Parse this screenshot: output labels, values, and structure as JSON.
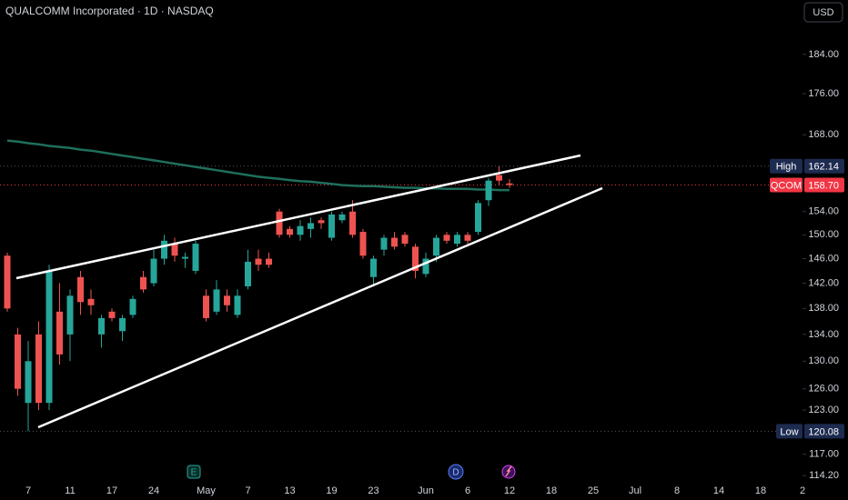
{
  "chart_data": {
    "type": "candlestick",
    "title": "QUALCOMM Incorporated · 1D · NASDAQ",
    "currency": "USD",
    "log_scale": true,
    "up_color": "#26a69a",
    "down_color": "#ef5350",
    "ma_color": "#1e6f5c",
    "ylim": [
      113.4,
      195.7
    ],
    "yticks": [
      {
        "value": 184,
        "label": "184.00"
      },
      {
        "value": 176,
        "label": "176.00"
      },
      {
        "value": 168,
        "label": "168.00"
      },
      {
        "value": 154,
        "label": "154.00"
      },
      {
        "value": 150,
        "label": "150.00"
      },
      {
        "value": 146,
        "label": "146.00"
      },
      {
        "value": 142,
        "label": "142.00"
      },
      {
        "value": 138,
        "label": "138.00"
      },
      {
        "value": 134,
        "label": "134.00"
      },
      {
        "value": 130,
        "label": "130.00"
      },
      {
        "value": 126,
        "label": "126.00"
      },
      {
        "value": 123,
        "label": "123.00"
      },
      {
        "value": 117,
        "label": "117.00"
      },
      {
        "value": 114.2,
        "label": "114.20"
      }
    ],
    "categories": [
      null,
      null,
      "7",
      null,
      null,
      null,
      "11",
      null,
      null,
      null,
      "17",
      null,
      null,
      null,
      "24",
      null,
      null,
      null,
      null,
      "May",
      null,
      null,
      null,
      "7",
      null,
      null,
      null,
      "13",
      null,
      null,
      null,
      "19",
      null,
      null,
      null,
      "23",
      null,
      null,
      null,
      null,
      "Jun",
      null,
      null,
      null,
      "6",
      null,
      null,
      null,
      "12",
      null,
      null,
      null,
      "18",
      null,
      null,
      null,
      "25",
      null,
      null,
      null,
      "Jul",
      null,
      null,
      null,
      "8",
      null,
      null,
      null,
      "14",
      null,
      null,
      null,
      "18",
      null,
      null,
      null,
      "2"
    ],
    "open": [
      146.5,
      134,
      124,
      134,
      124,
      137.5,
      134,
      143,
      139.5,
      134,
      137.5,
      134.5,
      137,
      143,
      142,
      146,
      148.5,
      146,
      144,
      140,
      137.5,
      140,
      137,
      141.5,
      146,
      146,
      154,
      151,
      150,
      151,
      152.5,
      149.5,
      152.5,
      154,
      150.5,
      143,
      147.5,
      149.5,
      150,
      148,
      143.5,
      146.5,
      150,
      148.5,
      150,
      150.5,
      156,
      160.5,
      159,
      null,
      null,
      null,
      null,
      null,
      null,
      null,
      null,
      null,
      null,
      null,
      null,
      null,
      null,
      null,
      null,
      null,
      null,
      null,
      null,
      null,
      null,
      null,
      null,
      null,
      null,
      null,
      null
    ],
    "high": [
      147,
      135,
      133,
      136,
      145,
      142,
      141,
      144,
      141,
      137,
      138,
      137,
      140,
      144,
      147.5,
      150,
      149.5,
      147,
      149,
      141,
      142.5,
      141,
      141,
      147.5,
      147.5,
      147,
      154.5,
      151.5,
      152.5,
      153,
      153,
      154,
      154,
      156,
      151,
      146.5,
      150,
      150.5,
      150.5,
      148.5,
      147,
      150,
      150.5,
      150.5,
      150.5,
      156,
      160,
      162.14,
      159.8,
      null,
      null,
      null,
      null,
      null,
      null,
      null,
      null,
      null,
      null,
      null,
      null,
      null,
      null,
      null,
      null,
      null,
      null,
      null,
      null,
      null,
      null,
      null,
      null,
      null,
      null,
      null,
      null
    ],
    "low": [
      137.5,
      125,
      120.08,
      123,
      123,
      129.5,
      130,
      137,
      137,
      132,
      136,
      133,
      136.5,
      140.5,
      141.5,
      145,
      145.5,
      144.5,
      143.5,
      136,
      137,
      137.5,
      136.5,
      141,
      144,
      144.5,
      149.5,
      149.5,
      149,
      149.5,
      151,
      149,
      152,
      149.5,
      146,
      141.5,
      146.5,
      147.5,
      148,
      142.8,
      143,
      145.5,
      148.5,
      148,
      148.5,
      150,
      155,
      158.8,
      158.2,
      null,
      null,
      null,
      null,
      null,
      null,
      null,
      null,
      null,
      null,
      null,
      null,
      null,
      null,
      null,
      null,
      null,
      null,
      null,
      null,
      null,
      null,
      null,
      null,
      null,
      null,
      null,
      null
    ],
    "close": [
      138,
      126,
      130,
      124,
      144,
      131,
      140,
      139,
      138.5,
      136.5,
      136.5,
      136.5,
      139.5,
      141,
      146,
      149,
      146.5,
      146.3,
      148.5,
      136.5,
      141,
      138.5,
      140,
      145.5,
      145,
      145,
      150,
      150,
      151.5,
      152,
      152,
      153.5,
      153.5,
      150,
      146.5,
      146,
      149.5,
      148,
      148.5,
      144,
      146,
      149.5,
      149,
      150,
      149,
      155.5,
      159.5,
      159.5,
      158.7,
      null,
      null,
      null,
      null,
      null,
      null,
      null,
      null,
      null,
      null,
      null,
      null,
      null,
      null,
      null,
      null,
      null,
      null,
      null,
      null,
      null,
      null,
      null,
      null,
      null,
      null,
      null,
      null
    ],
    "ma": [
      166.9,
      166.7,
      166.4,
      166.2,
      165.9,
      165.7,
      165.5,
      165.2,
      165.0,
      164.7,
      164.4,
      164.1,
      163.8,
      163.5,
      163.2,
      162.9,
      162.6,
      162.3,
      162.0,
      161.7,
      161.4,
      161.1,
      160.8,
      160.5,
      160.2,
      160.0,
      159.8,
      159.6,
      159.4,
      159.3,
      159.1,
      158.9,
      158.7,
      158.6,
      158.5,
      158.5,
      158.4,
      158.3,
      158.2,
      158.2,
      158.1,
      158.1,
      158.0,
      158.0,
      158.0,
      157.9,
      157.9,
      157.8,
      157.8,
      null,
      null,
      null,
      null,
      null,
      null,
      null,
      null,
      null,
      null,
      null,
      null,
      null,
      null,
      null,
      null,
      null,
      null,
      null,
      null,
      null,
      null,
      null,
      null,
      null,
      null,
      null,
      null
    ],
    "price_labels": [
      {
        "name": "High",
        "value": 162.14,
        "label": "162.14",
        "color": "#1e2b50",
        "line": "#555"
      },
      {
        "name": "QCOM",
        "value": 158.7,
        "label": "158.70",
        "color": "#f23645",
        "line": "#f23645"
      },
      {
        "name": "Low",
        "value": 120.08,
        "label": "120.08",
        "color": "#1e2b50",
        "line": "#555"
      }
    ],
    "events": [
      {
        "label": "E"
      },
      {
        "label": "D"
      }
    ]
  }
}
